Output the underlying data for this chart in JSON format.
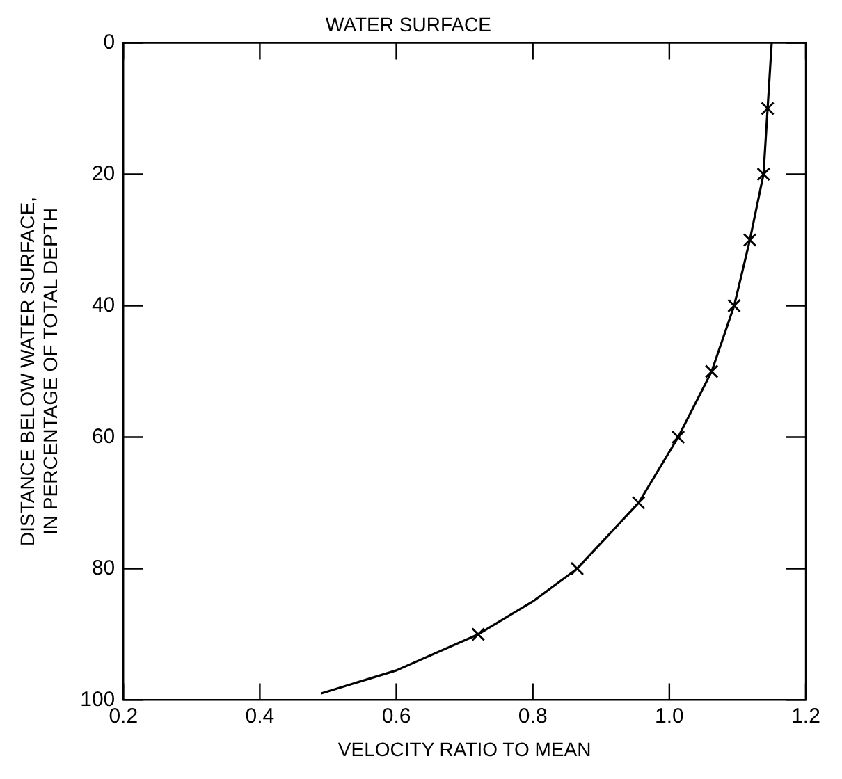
{
  "chart_data": {
    "type": "line",
    "title": "WATER SURFACE",
    "xlabel": "VELOCITY RATIO TO MEAN",
    "ylabel": "DISTANCE BELOW WATER SURFACE,\nIN PERCENTAGE OF TOTAL DEPTH",
    "xlim": [
      0.2,
      1.2
    ],
    "xticks": [
      {
        "value": 0.2,
        "label": "0.2"
      },
      {
        "value": 0.4,
        "label": "0.4"
      },
      {
        "value": 0.6,
        "label": "0.6"
      },
      {
        "value": 0.8,
        "label": "0.8"
      },
      {
        "value": 1.0,
        "label": "1.0"
      },
      {
        "value": 1.2,
        "label": "1.2"
      }
    ],
    "ylim": [
      100,
      0
    ],
    "yticks": [
      0,
      20,
      40,
      60,
      80,
      100
    ],
    "grid": false,
    "legend": false,
    "series": [
      {
        "type": "line",
        "color": "#000000",
        "marker": "none",
        "line_style": "solid",
        "x": [
          1.15,
          1.144,
          1.138,
          1.118,
          1.095,
          1.062,
          1.013,
          0.955,
          0.865,
          0.8,
          0.72,
          0.6,
          0.49
        ],
        "values": [
          0,
          10,
          20,
          30,
          40,
          50,
          60,
          70,
          80,
          85,
          90,
          95.5,
          99
        ]
      },
      {
        "type": "scatter",
        "color": "#000000",
        "marker": "cross",
        "x": [
          1.144,
          1.138,
          1.118,
          1.095,
          1.062,
          1.013,
          0.955,
          0.865,
          0.72
        ],
        "values": [
          10,
          20,
          30,
          40,
          50,
          60,
          70,
          80,
          90
        ]
      }
    ]
  }
}
